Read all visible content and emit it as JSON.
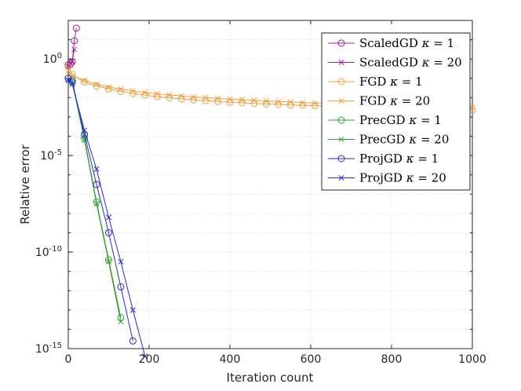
{
  "chart_data": {
    "type": "line",
    "title": "",
    "xlabel": "Iteration count",
    "ylabel": "Relative error",
    "xlim": [
      0,
      1000
    ],
    "ylog": true,
    "ylim_exponent": [
      -15,
      2
    ],
    "x_ticks": [
      {
        "value": 0,
        "label": "0"
      },
      {
        "value": 200,
        "label": "200"
      },
      {
        "value": 400,
        "label": "400"
      },
      {
        "value": 600,
        "label": "600"
      },
      {
        "value": 800,
        "label": "800"
      },
      {
        "value": 1000,
        "label": "1000"
      }
    ],
    "y_ticks": [
      {
        "exp": 0,
        "base": "10",
        "sup": "0"
      },
      {
        "exp": -5,
        "base": "10",
        "sup": "-5"
      },
      {
        "exp": -10,
        "base": "10",
        "sup": "-10"
      },
      {
        "exp": -15,
        "base": "10",
        "sup": "-15"
      }
    ],
    "grid": true,
    "legend_position": "top-right",
    "series": [
      {
        "name": "ScaledGD",
        "kappa": "1",
        "color": "#a020a0",
        "marker": "circle",
        "x": [
          0,
          5,
          10,
          15,
          20
        ],
        "y_exp": [
          -0.3,
          -0.25,
          -0.15,
          0.95,
          1.6
        ]
      },
      {
        "name": "ScaledGD",
        "kappa": "20",
        "color": "#a020a0",
        "marker": "x",
        "x": [
          0,
          5,
          10,
          15
        ],
        "y_exp": [
          -0.4,
          -0.3,
          -0.1,
          0.5
        ]
      },
      {
        "name": "FGD",
        "kappa": "1",
        "color": "#f0a040",
        "marker": "circle",
        "x": [
          0,
          10,
          40,
          70,
          100,
          130,
          160,
          190,
          220,
          250,
          280,
          310,
          340,
          370,
          400,
          430,
          460,
          490,
          520,
          550,
          580,
          610,
          640,
          670,
          700,
          730,
          760,
          790,
          820,
          850,
          880,
          910,
          940,
          970,
          1000
        ],
        "y_exp": [
          -0.4,
          -0.8,
          -1.2,
          -1.4,
          -1.55,
          -1.68,
          -1.78,
          -1.87,
          -1.95,
          -2.01,
          -2.07,
          -2.12,
          -2.16,
          -2.2,
          -2.24,
          -2.27,
          -2.3,
          -2.33,
          -2.35,
          -2.38,
          -2.4,
          -2.42,
          -2.44,
          -2.46,
          -2.48,
          -2.5,
          -2.52,
          -2.53,
          -2.55,
          -2.56,
          -2.58,
          -2.59,
          -2.6,
          -2.62,
          -2.63
        ]
      },
      {
        "name": "FGD",
        "kappa": "20",
        "color": "#f0a040",
        "marker": "x",
        "x": [
          0,
          10,
          40,
          70,
          100,
          130,
          160,
          190,
          220,
          250,
          280,
          310,
          340,
          370,
          400,
          430,
          460,
          490,
          520,
          550,
          580,
          610,
          640,
          670,
          700,
          730,
          760,
          790,
          820,
          850,
          880,
          910,
          940,
          970,
          1000
        ],
        "y_exp": [
          -0.6,
          -0.9,
          -1.1,
          -1.3,
          -1.45,
          -1.56,
          -1.65,
          -1.73,
          -1.8,
          -1.86,
          -1.91,
          -1.96,
          -2.0,
          -2.04,
          -2.08,
          -2.11,
          -2.14,
          -2.17,
          -2.2,
          -2.22,
          -2.25,
          -2.27,
          -2.29,
          -2.31,
          -2.33,
          -2.35,
          -2.37,
          -2.39,
          -2.41,
          -2.42,
          -2.44,
          -2.45,
          -2.47,
          -2.48,
          -2.5
        ]
      },
      {
        "name": "PrecGD",
        "kappa": "1",
        "color": "#30a030",
        "marker": "circle",
        "x": [
          0,
          10,
          40,
          70,
          100,
          130
        ],
        "y_exp": [
          -1.0,
          -1.1,
          -4.1,
          -7.4,
          -10.4,
          -13.4
        ]
      },
      {
        "name": "PrecGD",
        "kappa": "20",
        "color": "#30a030",
        "marker": "x",
        "x": [
          0,
          10,
          40,
          70,
          100,
          130
        ],
        "y_exp": [
          -1.1,
          -1.2,
          -4.2,
          -7.5,
          -10.5,
          -13.6
        ]
      },
      {
        "name": "ProjGD",
        "kappa": "1",
        "color": "#2828d0",
        "marker": "circle",
        "x": [
          0,
          10,
          40,
          70,
          100,
          130,
          160
        ],
        "y_exp": [
          -1.0,
          -1.2,
          -3.9,
          -6.5,
          -9.0,
          -11.8,
          -14.6
        ]
      },
      {
        "name": "ProjGD",
        "kappa": "20",
        "color": "#2828d0",
        "marker": "x",
        "x": [
          0,
          10,
          40,
          70,
          100,
          130,
          160,
          190
        ],
        "y_exp": [
          -1.1,
          -1.3,
          -3.7,
          -5.7,
          -8.2,
          -10.5,
          -13.0,
          -15.4
        ]
      }
    ],
    "legend_math": "κ = "
  }
}
